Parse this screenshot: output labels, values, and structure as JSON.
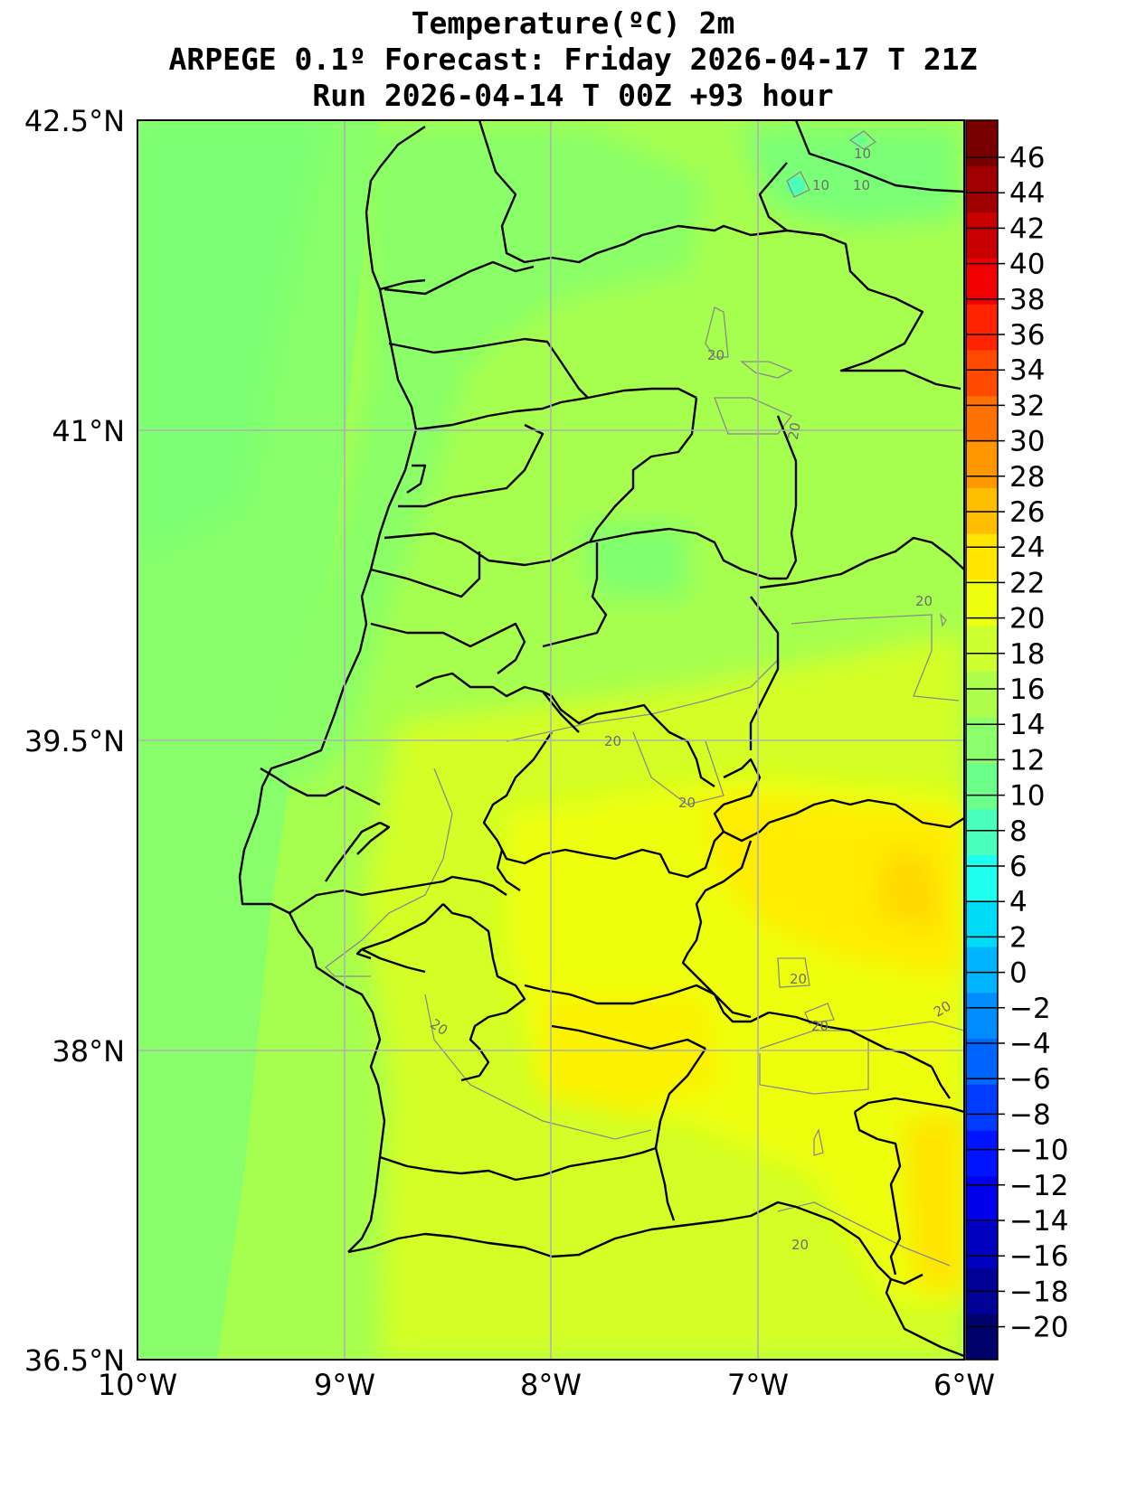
{
  "title": {
    "line1": "Temperature(ºC) 2m",
    "line2": "ARPEGE 0.1º Forecast: Friday 2026-04-17 T 21Z",
    "line3": "Run 2026-04-14 T 00Z +93 hour"
  },
  "map": {
    "lon_range": [
      -10,
      -6
    ],
    "lat_range": [
      36.5,
      42.5
    ],
    "lon_ticks": [
      "10°W",
      "9°W",
      "8°W",
      "7°W",
      "6°W"
    ],
    "lat_ticks": [
      "42.5°N",
      "41°N",
      "39.5°N",
      "38°N",
      "36.5°N"
    ],
    "grid": true,
    "contour_labels": [
      "10",
      "10",
      "10",
      "20",
      "20",
      "20",
      "20",
      "20",
      "20",
      "20",
      "20",
      "20",
      "20",
      "20"
    ]
  },
  "colorbar": {
    "ticks": [
      "46",
      "44",
      "42",
      "40",
      "38",
      "36",
      "34",
      "32",
      "30",
      "28",
      "26",
      "24",
      "22",
      "20",
      "18",
      "16",
      "14",
      "12",
      "10",
      "8",
      "6",
      "4",
      "2",
      "0",
      "−2",
      "−4",
      "−6",
      "−8",
      "−10",
      "−12",
      "−14",
      "−16",
      "−18",
      "−20"
    ],
    "colors": [
      "#00006b",
      "#000096",
      "#0000c0",
      "#0000ea",
      "#0014ff",
      "#003cff",
      "#0064ff",
      "#008cff",
      "#00b4ff",
      "#00dcf8",
      "#1ffff0",
      "#4affbd",
      "#6cff8c",
      "#8cff6c",
      "#adff4c",
      "#ceff2e",
      "#eeff0f",
      "#ffe600",
      "#ffbf00",
      "#ff9800",
      "#ff7100",
      "#ff4a00",
      "#ff2300",
      "#f00000",
      "#c80000",
      "#a00000",
      "#7a0000"
    ]
  }
}
